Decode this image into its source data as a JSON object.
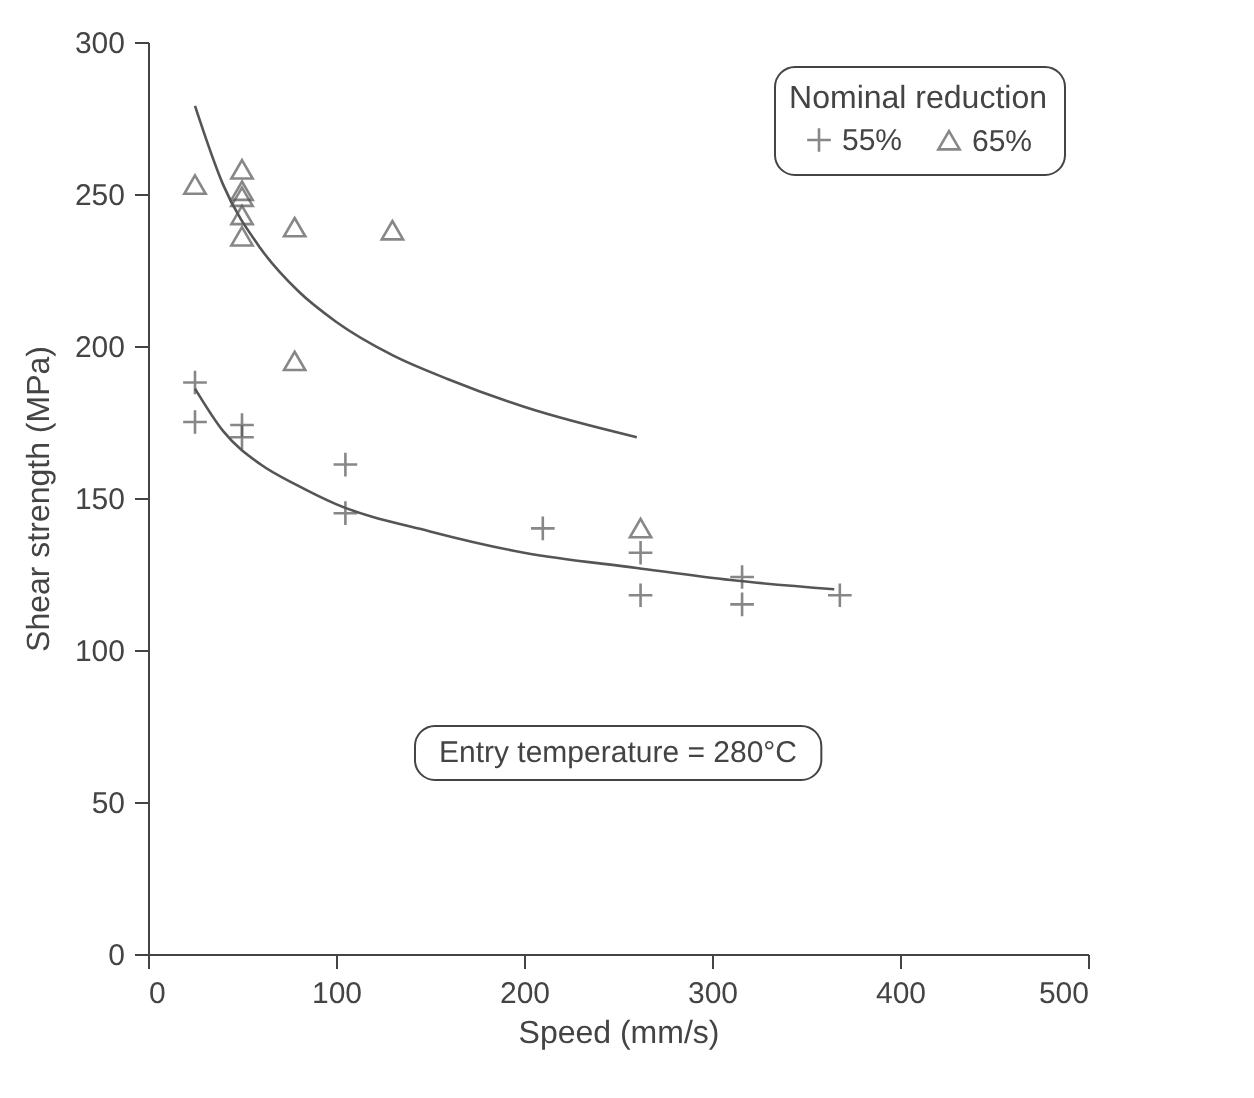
{
  "chart_data": {
    "type": "scatter",
    "xlabel": "Speed (mm/s)",
    "ylabel": "Shear strength (MPa)",
    "legend_title": "Nominal reduction",
    "legend": "top right",
    "grid": false,
    "xlim": [
      0,
      500
    ],
    "ylim": [
      0,
      300
    ],
    "xticks": [
      0,
      100,
      200,
      300,
      400,
      500
    ],
    "yticks": [
      0,
      50,
      100,
      150,
      200,
      250,
      300
    ],
    "annotations": [
      "Entry temperature = 280°C"
    ],
    "series": [
      {
        "name": "55%",
        "color": "#555555",
        "marker": "cross",
        "x": [
          25,
          25,
          50,
          50,
          105,
          105,
          210,
          262,
          262,
          316,
          316,
          368
        ],
        "values": [
          188,
          175,
          174,
          170,
          161,
          145,
          140,
          132,
          118,
          124,
          115,
          118
        ]
      },
      {
        "name": "65%",
        "color": "#555555",
        "marker": "triangle",
        "x": [
          25,
          50,
          50,
          50,
          50,
          50,
          78,
          78,
          130,
          262
        ],
        "values": [
          253,
          258,
          251,
          249,
          243,
          236,
          239,
          195,
          238,
          140
        ]
      },
      {
        "type": "line",
        "color": "#555555",
        "x": [
          25,
          40,
          60,
          80,
          100,
          130,
          160,
          200,
          260
        ],
        "values": [
          279,
          253,
          232,
          218,
          208,
          197,
          189,
          180,
          170
        ]
      },
      {
        "type": "line",
        "color": "#555555",
        "x": [
          25,
          40,
          60,
          80,
          100,
          150,
          200,
          260,
          310,
          365
        ],
        "values": [
          186,
          172,
          161,
          154,
          148,
          139,
          132,
          127,
          123,
          120
        ]
      }
    ]
  }
}
